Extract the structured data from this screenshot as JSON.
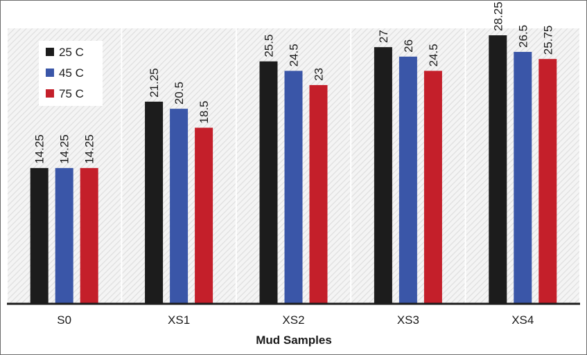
{
  "chart_data": {
    "type": "bar",
    "title": "",
    "xlabel": "Mud Samples",
    "ylabel": "",
    "categories": [
      "S0",
      "XS1",
      "XS2",
      "XS3",
      "XS4"
    ],
    "ylim": [
      0,
      30
    ],
    "grid": false,
    "legend_position": "top-left",
    "series": [
      {
        "name": "25 C",
        "color": "#1c1c1c",
        "values": [
          14.25,
          21.25,
          25.5,
          27,
          28.25
        ],
        "labels": [
          "14.25",
          "21.25",
          "25.5",
          "27",
          "28.25"
        ]
      },
      {
        "name": "45 C",
        "color": "#3a56a8",
        "values": [
          14.25,
          20.5,
          24.5,
          26,
          26.5
        ],
        "labels": [
          "14.25",
          "20.5",
          "24.5",
          "26",
          "26.5"
        ]
      },
      {
        "name": "75 C",
        "color": "#c41f2a",
        "values": [
          14.25,
          18.5,
          23,
          24.5,
          25.75
        ],
        "labels": [
          "14.25",
          "18.5",
          "23",
          "24.5",
          "25.75"
        ]
      }
    ]
  }
}
